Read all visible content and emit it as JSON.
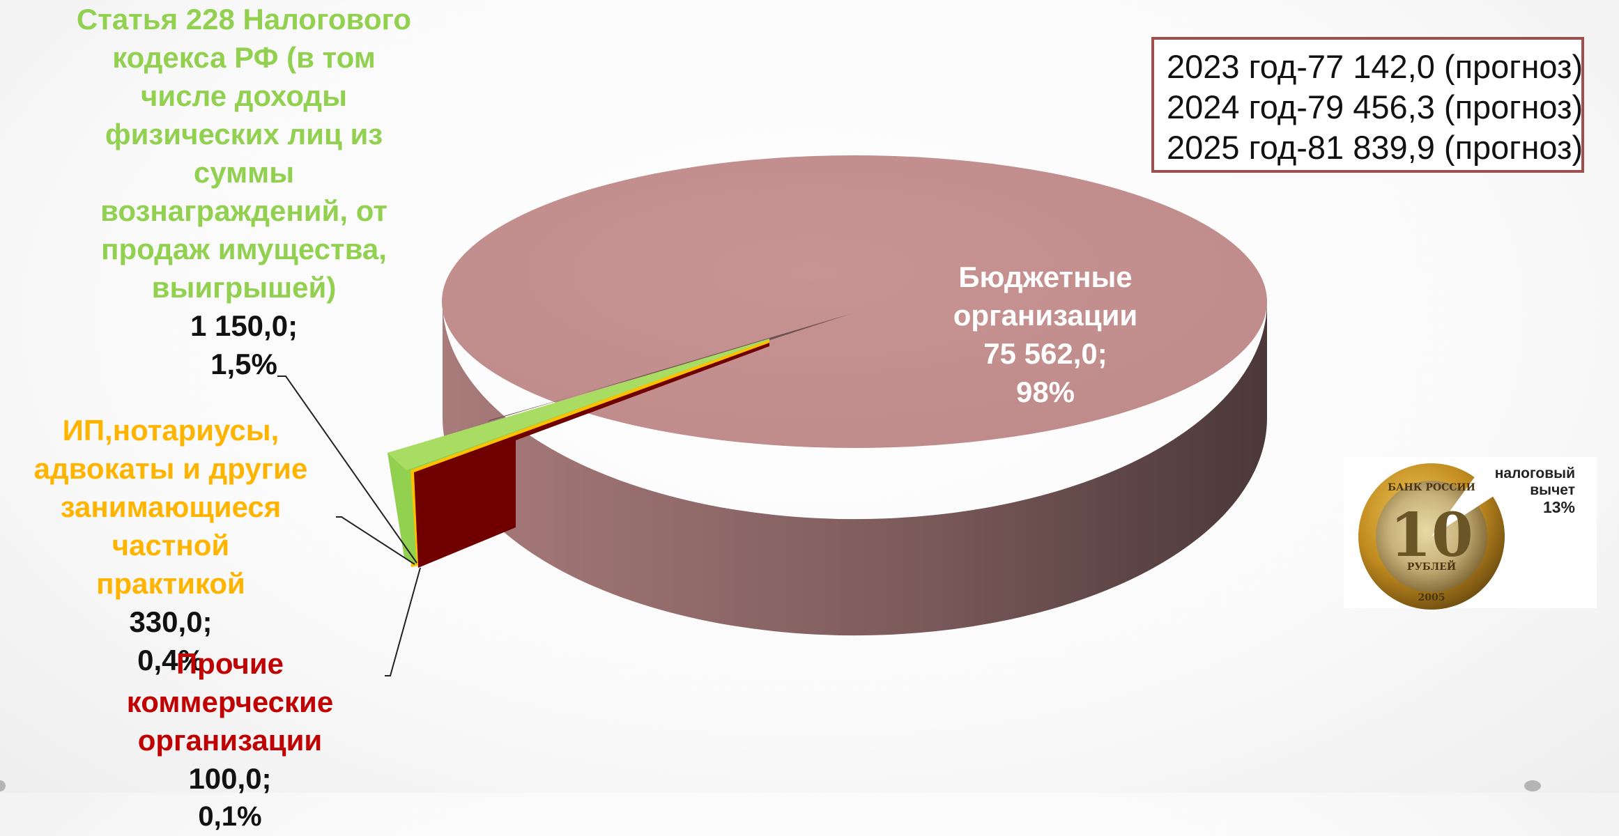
{
  "chart_data": {
    "type": "pie",
    "title": "",
    "series": [
      {
        "values": [
          75562.0,
          1150.0,
          330.0,
          100.0
        ],
        "labels": [
          "Бюджетные организации",
          "Статья 228 Налогового кодекса РФ (в том числе доходы физических лиц из суммы вознаграждений, от продаж имущества, выигрышей)",
          "ИП,нотариусы, адвокаты и другие занимающиеся частной практикой",
          "Прочие коммерческие организации"
        ],
        "percents": [
          "98%",
          "1,5%",
          "0,4%",
          "0,1%"
        ],
        "colors": [
          "#C48E8E",
          "#92D050",
          "#FFC000",
          "#7A0000"
        ]
      }
    ]
  },
  "labels": {
    "budget": {
      "line1": "Бюджетные",
      "line2": "организации",
      "value": "75 562,0;",
      "pct": "98%"
    },
    "article228": {
      "line1": "Статья 228 Налогового",
      "line2": "кодекса РФ (в том",
      "line3": "числе доходы",
      "line4": "физических лиц из",
      "line5": "суммы",
      "line6": "вознаграждений, от",
      "line7": "продаж имущества,",
      "line8": "выигрышей)",
      "value": "1 150,0;",
      "pct": "1,5%"
    },
    "ip": {
      "line1": "ИП,нотариусы,",
      "line2": "адвокаты и другие",
      "line3": "занимающиеся частной",
      "line4": "практикой",
      "value": "330,0;",
      "pct": "0,4%"
    },
    "other": {
      "line1": "Прочие коммерческие",
      "line2": "организации",
      "value": "100,0;",
      "pct": "0,1%"
    }
  },
  "forecast": [
    "2023 год-77 142,0 (прогноз)",
    "2024 год-79 456,3 (прогноз)",
    "2025 год-81 839,9 (прогноз)"
  ],
  "coin": {
    "label_line1": "налоговый",
    "label_line2": "вычет",
    "pct": "13%",
    "top_text": "БАНК РОССИИ",
    "denomination": "10",
    "bottom_text": "РУБЛЕЙ",
    "year": "2005"
  }
}
